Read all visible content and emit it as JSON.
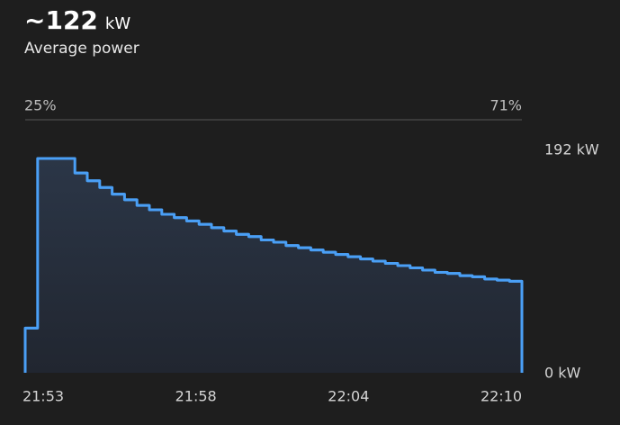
{
  "chart_data": {
    "type": "step",
    "title": "~122",
    "title_unit": "kW",
    "subtitle": "Average power",
    "start_label": "25%",
    "end_label": "71%",
    "x_tick_labels": [
      "21:53",
      "21:58",
      "22:04",
      "22:10"
    ],
    "values": [
      40,
      192,
      192,
      192,
      179,
      172,
      166,
      160,
      155,
      150,
      146,
      142,
      139,
      136,
      133,
      130,
      127,
      124,
      122,
      119,
      117,
      114,
      112,
      110,
      108,
      106,
      104,
      102,
      100,
      98,
      96,
      94,
      92,
      90,
      89,
      87,
      86,
      84,
      83,
      82
    ],
    "color": "#4a9ff5",
    "ylim": [
      0,
      192
    ],
    "yticks": [
      {
        "value": 192,
        "label": "192 kW"
      },
      {
        "value": 0,
        "label": "0 kW"
      }
    ]
  }
}
